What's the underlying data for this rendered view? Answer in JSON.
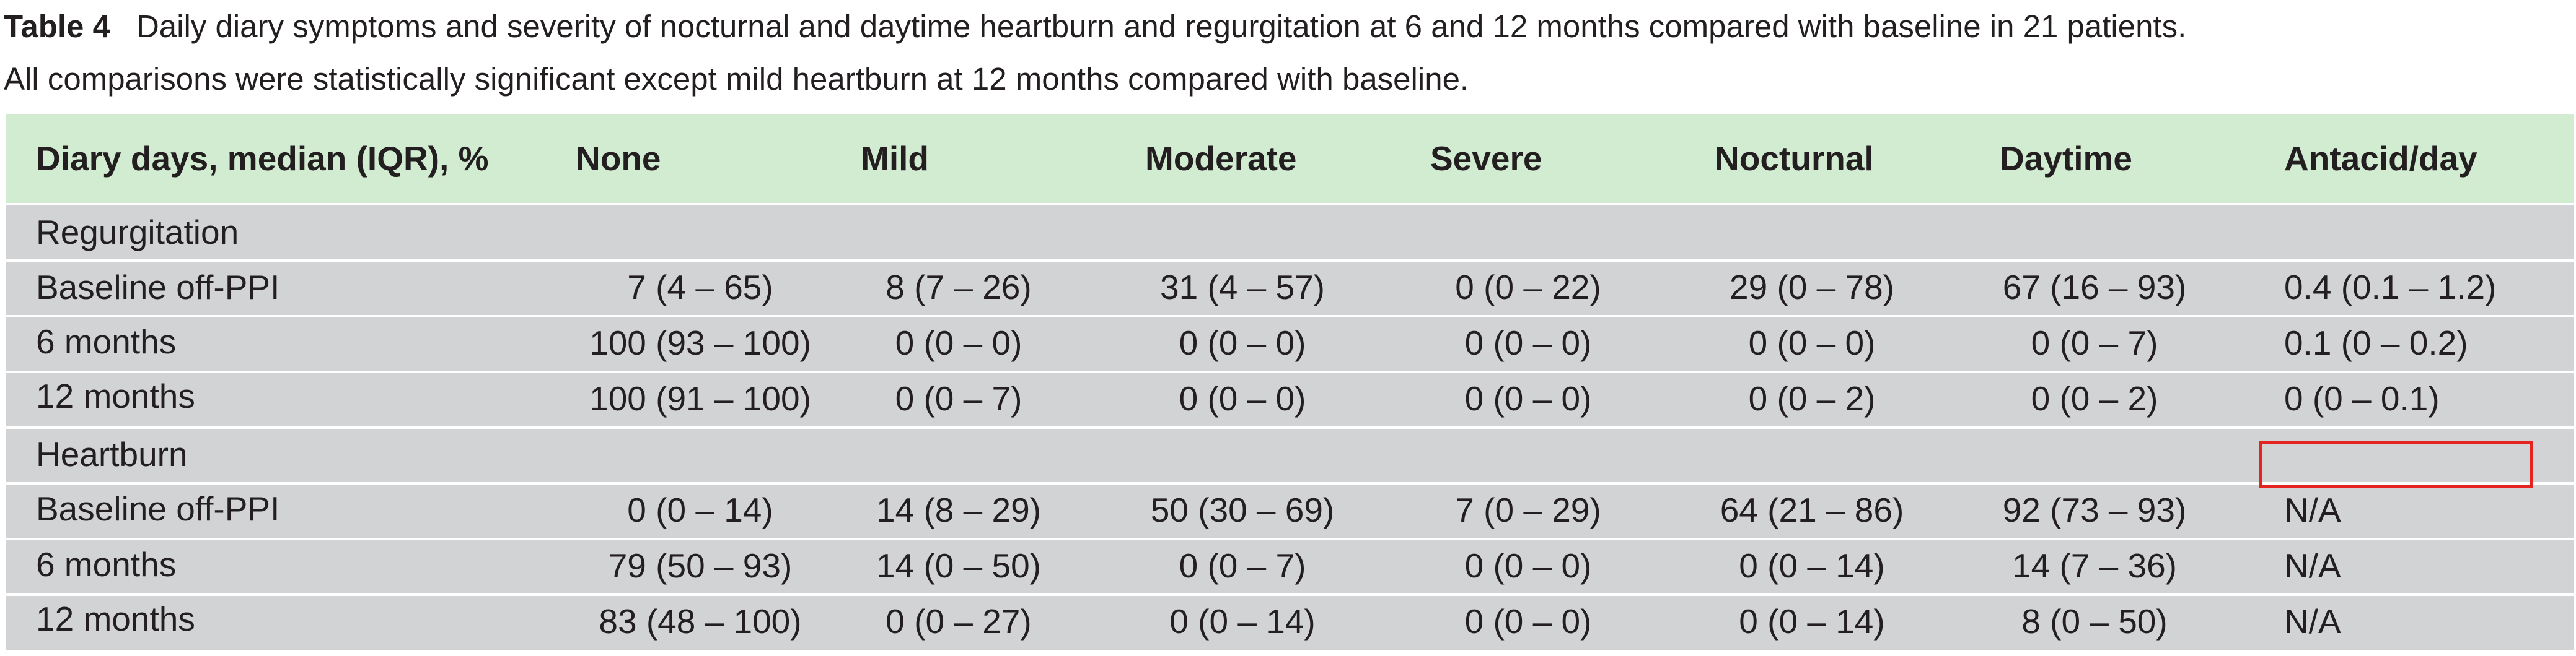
{
  "caption": {
    "label": "Table 4",
    "line1": "Daily diary symptoms and severity of nocturnal and daytime heartburn and regurgitation at 6 and 12 months compared with baseline in 21 patients.",
    "line2": "All comparisons were statistically significant except mild heartburn at 12 months compared with baseline."
  },
  "table": {
    "headers": [
      "Diary days, median (IQR), %",
      "None",
      "Mild",
      "Moderate",
      "Severe",
      "Nocturnal",
      "Daytime",
      "Antacid/day"
    ],
    "sections": [
      {
        "title": "Regurgitation",
        "rows": [
          [
            "Baseline off-PPI",
            "7 (4 – 65)",
            "8 (7 – 26)",
            "31 (4 – 57)",
            "0 (0 – 22)",
            "29 (0 – 78)",
            "67 (16 – 93)",
            "0.4 (0.1 – 1.2)"
          ],
          [
            "6 months",
            "100 (93 – 100)",
            "0 (0 – 0)",
            "0 (0 – 0)",
            "0 (0 – 0)",
            "0 (0 – 0)",
            "0 (0 – 7)",
            "0.1 (0 – 0.2)"
          ],
          [
            "12 months",
            "100 (91 – 100)",
            "0 (0 – 7)",
            "0 (0 – 0)",
            "0 (0 – 0)",
            "0 (0 – 2)",
            "0 (0 – 2)",
            "0 (0 – 0.1)"
          ]
        ]
      },
      {
        "title": "Heartburn",
        "rows": [
          [
            "Baseline off-PPI",
            "0 (0 – 14)",
            "14 (8 – 29)",
            "50 (30 – 69)",
            "7 (0 – 29)",
            "64 (21 – 86)",
            "92 (73 – 93)",
            "N/A"
          ],
          [
            "6 months",
            "79 (50 – 93)",
            "14 (0 – 50)",
            "0 (0 – 7)",
            "0 (0 – 0)",
            "0 (0 – 14)",
            "14 (7 – 36)",
            "N/A"
          ],
          [
            "12 months",
            "83 (48 – 100)",
            "0 (0 – 27)",
            "0 (0 – 14)",
            "0 (0 – 0)",
            "0 (0 – 14)",
            "8 (0 – 50)",
            "N/A"
          ]
        ]
      }
    ]
  },
  "highlight": {
    "color": "#e52421",
    "target": "Regurgitation 6 months Antacid/day"
  }
}
